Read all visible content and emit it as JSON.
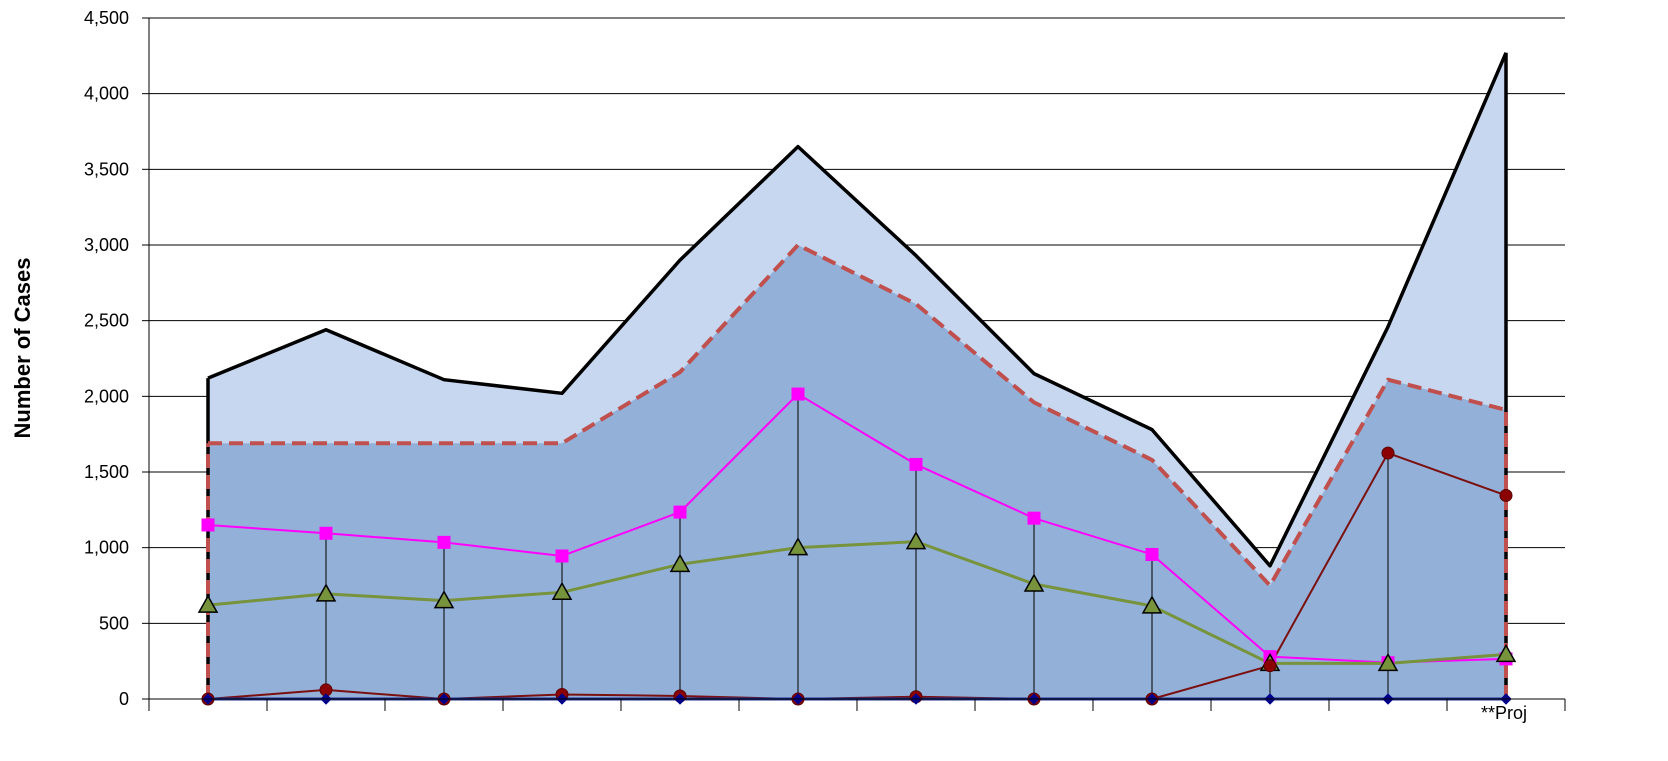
{
  "chart_data": {
    "type": "area",
    "xlabel": "",
    "ylabel": "Number of Cases",
    "ylim": [
      0,
      4500
    ],
    "yticks": [
      0,
      500,
      1000,
      1500,
      2000,
      2500,
      3000,
      3500,
      4000,
      4500
    ],
    "ytick_labels": [
      "0",
      "500",
      "1,000",
      "1,500",
      "2,000",
      "2,500",
      "3,000",
      "3,500",
      "4,000",
      "4,500"
    ],
    "x_count": 12,
    "x_tick_labels": [
      "",
      "",
      "",
      "",
      "",
      "",
      "",
      "",
      "",
      "",
      "",
      "**Proj"
    ],
    "grid": true,
    "legend": "none",
    "series": [
      {
        "type": "area-line",
        "color": "#000000",
        "fill": "#c6d7ef",
        "values": [
          2120,
          2440,
          2110,
          2020,
          2900,
          3650,
          2930,
          2150,
          1780,
          880,
          2460,
          4270
        ]
      },
      {
        "type": "area-dashed",
        "color": "#c0504d",
        "fill": "#93b0d8",
        "values": [
          1690,
          1690,
          1690,
          1690,
          2160,
          3000,
          2610,
          1960,
          1580,
          750,
          2110,
          1910
        ]
      },
      {
        "type": "line-square",
        "color": "#ff00ff",
        "values": [
          1150,
          1095,
          1035,
          945,
          1235,
          2015,
          1550,
          1195,
          955,
          280,
          240,
          265
        ]
      },
      {
        "type": "line-triangle",
        "color": "#77933c",
        "marker_fill": "#77933c",
        "values": [
          620,
          695,
          650,
          705,
          890,
          1000,
          1040,
          760,
          615,
          235,
          235,
          295
        ]
      },
      {
        "type": "line-circle",
        "color": "#7b1010",
        "marker_fill": "#8b0000",
        "values": [
          0,
          60,
          0,
          30,
          20,
          0,
          15,
          0,
          0,
          220,
          1625,
          1345
        ]
      },
      {
        "type": "line-diamond",
        "color": "#1f2f8f",
        "marker_fill": "#00008b",
        "values": [
          0,
          0,
          0,
          0,
          0,
          0,
          0,
          0,
          0,
          0,
          0,
          0
        ]
      }
    ],
    "droplines": true
  }
}
